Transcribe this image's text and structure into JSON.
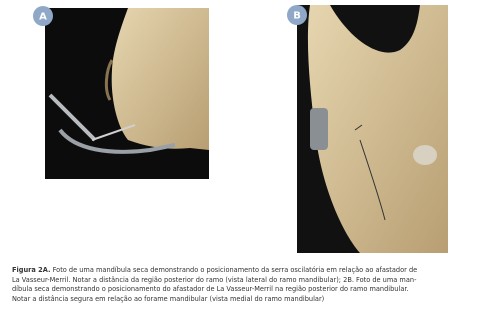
{
  "figure": {
    "panels": [
      {
        "label": "A"
      },
      {
        "label": "B"
      }
    ],
    "caption": {
      "label": "Figura 2A.",
      "lines": [
        " Foto de uma mandíbula seca demonstrando o posicionamento da serra oscilatória em relação ao afastador de",
        "La Vasseur-Merril. Notar a distância da região posterior do ramo (vista lateral do ramo mandibular); 2B. Foto de uma man-",
        "díbula seca demonstrando o posicionamento do afastador de La Vasseur-Merril na região posterior do ramo mandibular.",
        "Notar a distância segura em relação ao forame mandibular (vista medial do ramo mandibular)"
      ]
    }
  }
}
